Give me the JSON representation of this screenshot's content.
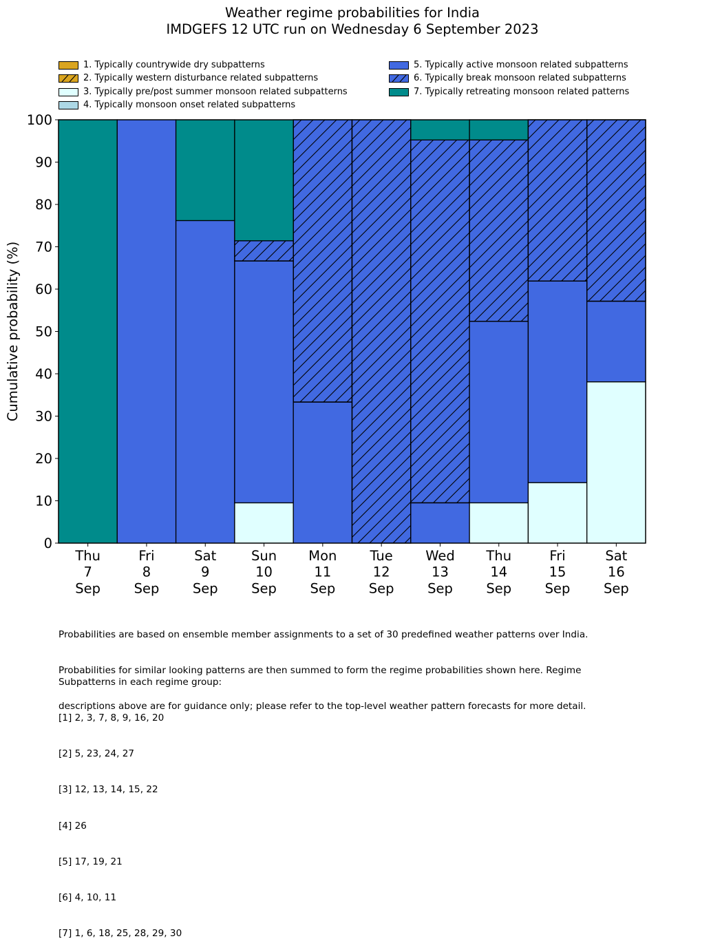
{
  "title": "Weather regime probabilities for India",
  "subtitle": "IMDGEFS 12 UTC run on Wednesday 6 September 2023",
  "chart_data": {
    "type": "bar",
    "stacked": true,
    "title": "Weather regime probabilities for India\nIMDGEFS 12 UTC run on Wednesday 6 September 2023",
    "xlabel": "",
    "ylabel": "Cumulative probability (%)",
    "ylim": [
      0,
      100
    ],
    "yticks": [
      0,
      10,
      20,
      30,
      40,
      50,
      60,
      70,
      80,
      90,
      100
    ],
    "grid": false,
    "legend_position": "top",
    "categories": [
      [
        "Thu",
        "7",
        "Sep"
      ],
      [
        "Fri",
        "8",
        "Sep"
      ],
      [
        "Sat",
        "9",
        "Sep"
      ],
      [
        "Sun",
        "10",
        "Sep"
      ],
      [
        "Mon",
        "11",
        "Sep"
      ],
      [
        "Tue",
        "12",
        "Sep"
      ],
      [
        "Wed",
        "13",
        "Sep"
      ],
      [
        "Thu",
        "14",
        "Sep"
      ],
      [
        "Fri",
        "15",
        "Sep"
      ],
      [
        "Sat",
        "16",
        "Sep"
      ]
    ],
    "series": [
      {
        "name": "1. Typically countrywide dry subpatterns",
        "color": "#DAA520",
        "hatch": false,
        "values": [
          0,
          0,
          0,
          0,
          0,
          0,
          0,
          0,
          0,
          0
        ]
      },
      {
        "name": "2. Typically western disturbance related subpatterns",
        "color": "#DAA520",
        "hatch": true,
        "values": [
          0,
          0,
          0,
          0,
          0,
          0,
          0,
          0,
          0,
          0
        ]
      },
      {
        "name": "3. Typically pre/post summer monsoon related subpatterns",
        "color": "#E0FFFF",
        "hatch": false,
        "values": [
          0,
          0,
          0,
          9.52,
          0,
          0,
          0,
          9.52,
          14.29,
          38.1
        ]
      },
      {
        "name": "4. Typically monsoon onset related subpatterns",
        "color": "#ADD8E6",
        "hatch": false,
        "values": [
          0,
          0,
          0,
          0,
          0,
          0,
          0,
          0,
          0,
          0
        ]
      },
      {
        "name": "5. Typically active monsoon related subpatterns",
        "color": "#4169E1",
        "hatch": false,
        "values": [
          0,
          100,
          76.19,
          57.14,
          33.33,
          0,
          9.52,
          42.86,
          47.62,
          19.05
        ]
      },
      {
        "name": "6. Typically break monsoon related subpatterns",
        "color": "#4169E1",
        "hatch": true,
        "values": [
          0,
          0,
          0,
          4.76,
          66.67,
          100,
          85.71,
          42.86,
          38.1,
          42.86
        ]
      },
      {
        "name": "7. Typically retreating monsoon related patterns",
        "color": "#008B8B",
        "hatch": false,
        "values": [
          100,
          0,
          23.81,
          28.57,
          0,
          0,
          4.76,
          4.76,
          0,
          0
        ]
      }
    ]
  },
  "notes": {
    "paragraph": [
      "Probabilities are based on ensemble member assignments to a set of 30 predefined weather patterns over India.",
      "Probabilities for similar looking patterns are then summed to form the regime probabilities shown here. Regime",
      "descriptions above are for guidance only; please refer to the top-level weather pattern forecasts for more detail."
    ],
    "groups_heading": "Subpatterns in each regime group:",
    "groups": [
      "[1] 2, 3, 7, 8, 9, 16, 20",
      "[2] 5, 23, 24, 27",
      "[3] 12, 13, 14, 15, 22",
      "[4] 26",
      "[5] 17, 19, 21",
      "[6] 4, 10, 11",
      "[7] 1, 6, 18, 25, 28, 29, 30"
    ]
  }
}
